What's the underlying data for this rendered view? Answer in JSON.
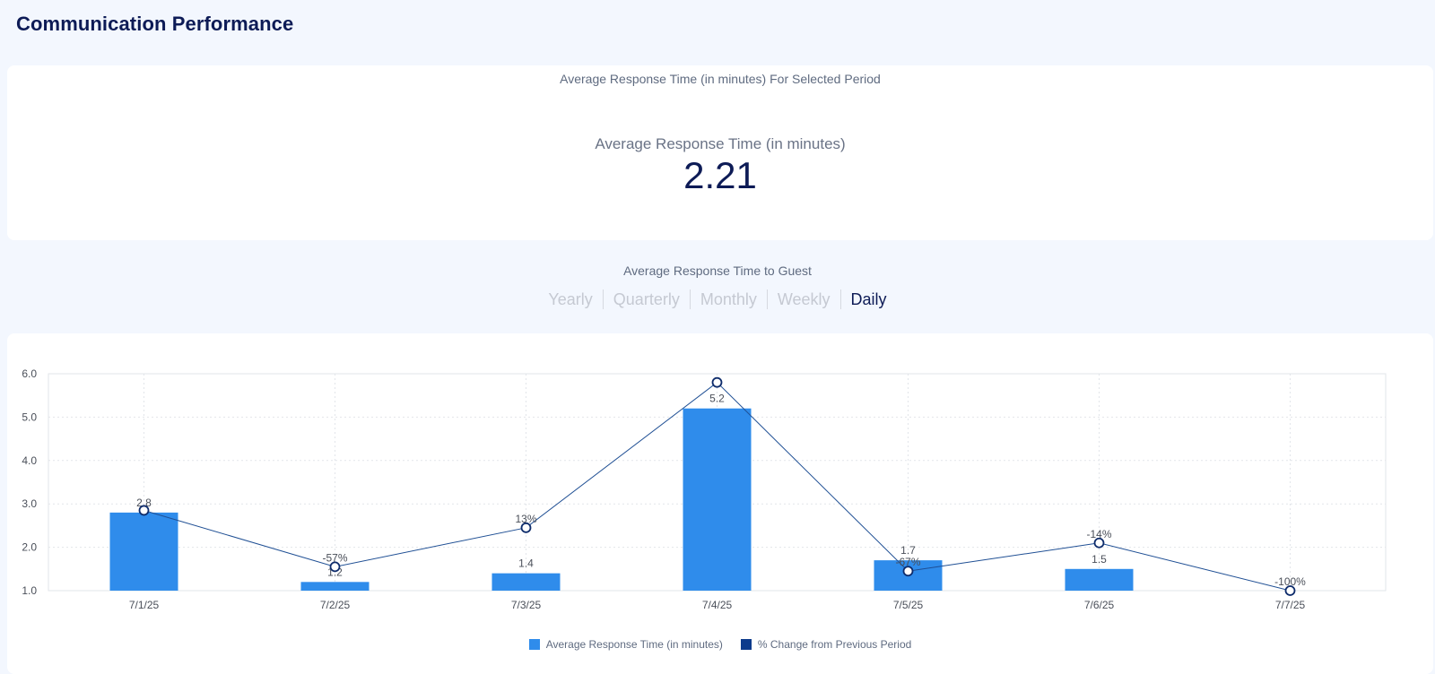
{
  "header": {
    "title": "Communication Performance"
  },
  "summary": {
    "subtitle": "Average Response Time (in minutes) For Selected Period",
    "metric_label": "Average Response Time (in minutes)",
    "metric_value": "2.21"
  },
  "section": {
    "title": "Average Response Time to Guest"
  },
  "period_tabs": [
    {
      "label": "Yearly",
      "active": false
    },
    {
      "label": "Quarterly",
      "active": false
    },
    {
      "label": "Monthly",
      "active": false
    },
    {
      "label": "Weekly",
      "active": false
    },
    {
      "label": "Daily",
      "active": true
    }
  ],
  "colors": {
    "bar": "#2f8ceb",
    "line": "#1f4f94",
    "marker_stroke": "#0d2b6b",
    "legend_line_swatch": "#0d3b8c",
    "grid": "#e2e5ea",
    "tick_text": "#4a4f59"
  },
  "chart_data": {
    "type": "bar",
    "categories": [
      "7/1/25",
      "7/2/25",
      "7/3/25",
      "7/4/25",
      "7/5/25",
      "7/6/25",
      "7/7/25"
    ],
    "ylim": [
      1.0,
      6.0
    ],
    "yticks": [
      "6.0",
      "5.0",
      "4.0",
      "3.0",
      "2.0",
      "1.0"
    ],
    "series": [
      {
        "name": "Average Response Time (in minutes)",
        "type": "bar",
        "values": [
          2.8,
          1.2,
          1.4,
          5.2,
          1.7,
          1.5,
          null
        ],
        "labels": [
          "2.8",
          "1.2",
          "1.4",
          "5.2",
          "1.7",
          "1.5",
          ""
        ]
      },
      {
        "name": "% Change from Previous Period",
        "type": "line",
        "values": [
          2.85,
          1.55,
          2.45,
          5.8,
          1.45,
          2.1,
          1.0
        ],
        "labels": [
          "",
          "-57%",
          "13%",
          "",
          "-67%",
          "-14%",
          "-100%"
        ]
      }
    ],
    "legend": [
      "Average Response Time (in minutes)",
      "% Change from Previous Period"
    ],
    "legend_position": "bottom",
    "grid": true
  }
}
